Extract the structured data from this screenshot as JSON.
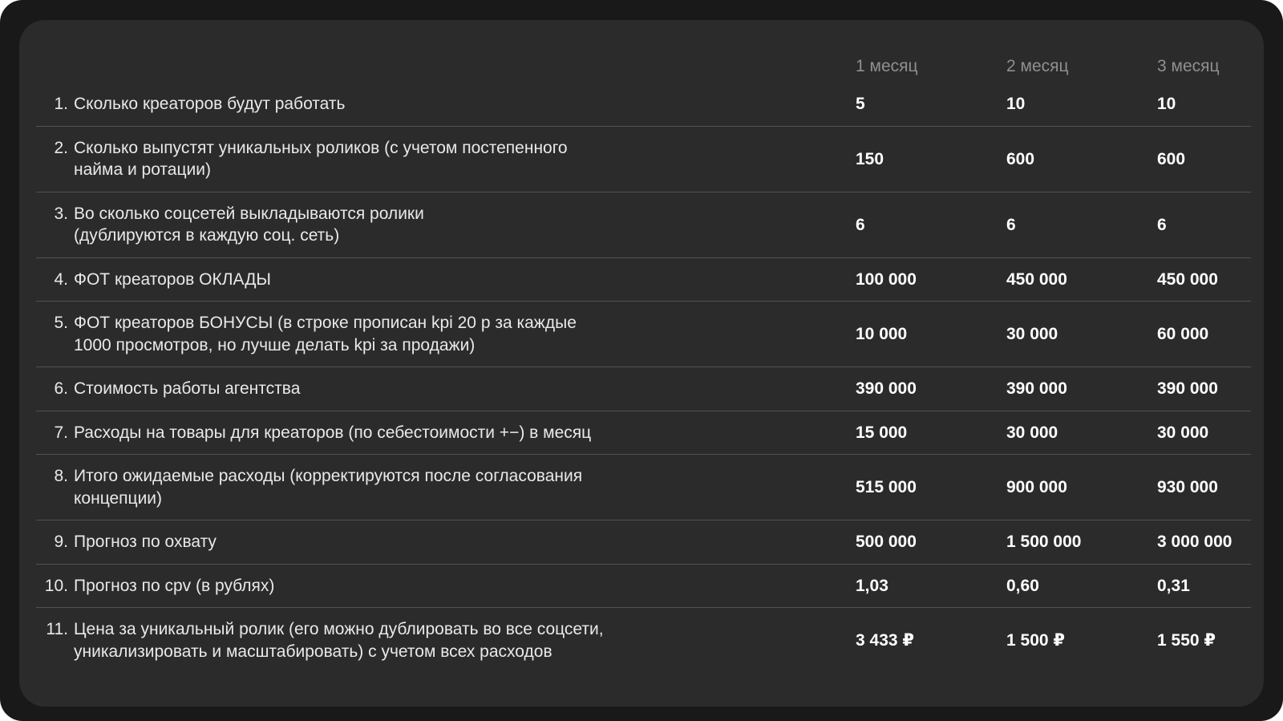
{
  "colors": {
    "page_background": "#191919",
    "card_background": "#2b2b2b",
    "separator": "#525252",
    "header_text": "#8f8f8f",
    "label_text": "#e9e9e9",
    "value_text": "#ffffff"
  },
  "table": {
    "columns": [
      "1 месяц",
      "2 месяц",
      "3 месяц"
    ],
    "rows": [
      {
        "num": "1.",
        "label_lines": [
          "Сколько креаторов будут работать"
        ],
        "values": [
          "5",
          "10",
          "10"
        ]
      },
      {
        "num": "2.",
        "label_lines": [
          "Сколько выпустят уникальных роликов (с учетом постепенного",
          "найма и ротации)"
        ],
        "values": [
          "150",
          "600",
          "600"
        ]
      },
      {
        "num": "3.",
        "label_lines": [
          "Во сколько соцсетей выкладываются ролики",
          "(дублируются в каждую соц. сеть)"
        ],
        "values": [
          "6",
          "6",
          "6"
        ]
      },
      {
        "num": "4.",
        "label_lines": [
          "ФОТ креаторов ОКЛАДЫ"
        ],
        "values": [
          "100 000",
          "450 000",
          "450 000"
        ]
      },
      {
        "num": "5.",
        "label_lines": [
          "ФОТ креаторов БОНУСЫ (в строке прописан kpi 20 р за каждые",
          "1000 просмотров, но лучше делать kpi за продажи)"
        ],
        "values": [
          "10 000",
          "30 000",
          "60 000"
        ]
      },
      {
        "num": "6.",
        "label_lines": [
          "Стоимость работы агентства"
        ],
        "values": [
          "390 000",
          "390 000",
          "390 000"
        ]
      },
      {
        "num": "7.",
        "label_lines": [
          "Расходы на товары для креаторов (по себестоимости +−) в месяц"
        ],
        "values": [
          "15 000",
          "30 000",
          "30 000"
        ]
      },
      {
        "num": "8.",
        "label_lines": [
          "Итого ожидаемые расходы (корректируются после согласования",
          "концепции)"
        ],
        "values": [
          "515 000",
          "900 000",
          "930 000"
        ]
      },
      {
        "num": "9.",
        "label_lines": [
          "Прогноз по охвату"
        ],
        "values": [
          "500 000",
          "1 500 000",
          "3 000 000"
        ]
      },
      {
        "num": "10.",
        "label_lines": [
          "Прогноз по cpv (в рублях)"
        ],
        "values": [
          "1,03",
          "0,60",
          "0,31"
        ]
      },
      {
        "num": "11.",
        "label_lines": [
          "Цена за уникальный ролик (его можно дублировать во все соцсети,",
          "уникализировать и масштабировать) с учетом всех расходов"
        ],
        "values": [
          "3 433 ₽",
          "1 500 ₽",
          "1 550 ₽"
        ]
      }
    ]
  }
}
